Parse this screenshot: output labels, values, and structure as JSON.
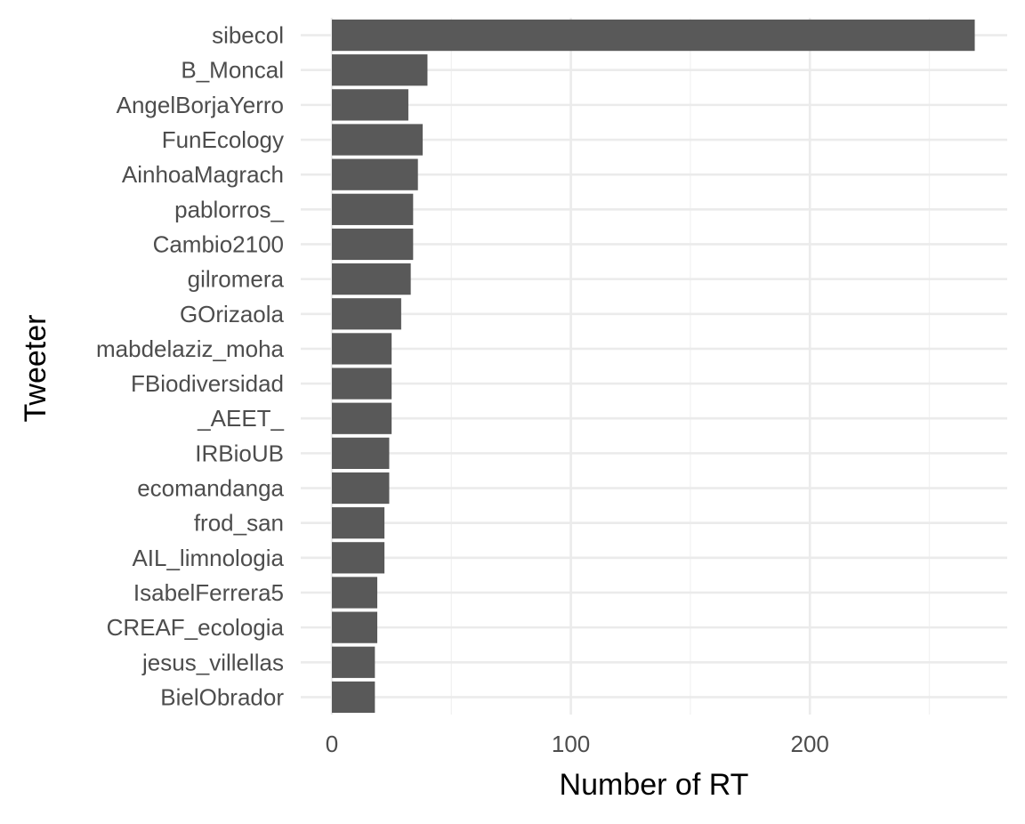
{
  "chart_data": {
    "type": "bar",
    "orientation": "horizontal",
    "title": "",
    "xlabel": "Number of RT",
    "ylabel": "Tweeter",
    "xlim": [
      0,
      283
    ],
    "x_ticks": [
      0,
      100,
      200
    ],
    "x_minor_ticks": [
      50,
      150,
      250
    ],
    "grid": true,
    "bar_color": "#595959",
    "categories": [
      "sibecol",
      "B_Moncal",
      "AngelBorjaYerro",
      "FunEcology",
      "AinhoaMagrach",
      "pablorros_",
      "Cambio2100",
      "gilromera",
      "GOrizaola",
      "mabdelaziz_moha",
      "FBiodiversidad",
      "_AEET_",
      "IRBioUB",
      "ecomandanga",
      "frod_san",
      "AIL_limnologia",
      "IsabelFerrera5",
      "CREAF_ecologia",
      "jesus_villellas",
      "BielObrador"
    ],
    "values": [
      269,
      40,
      32,
      38,
      36,
      34,
      34,
      33,
      29,
      25,
      25,
      25,
      24,
      24,
      22,
      22,
      19,
      19,
      18,
      18
    ]
  }
}
